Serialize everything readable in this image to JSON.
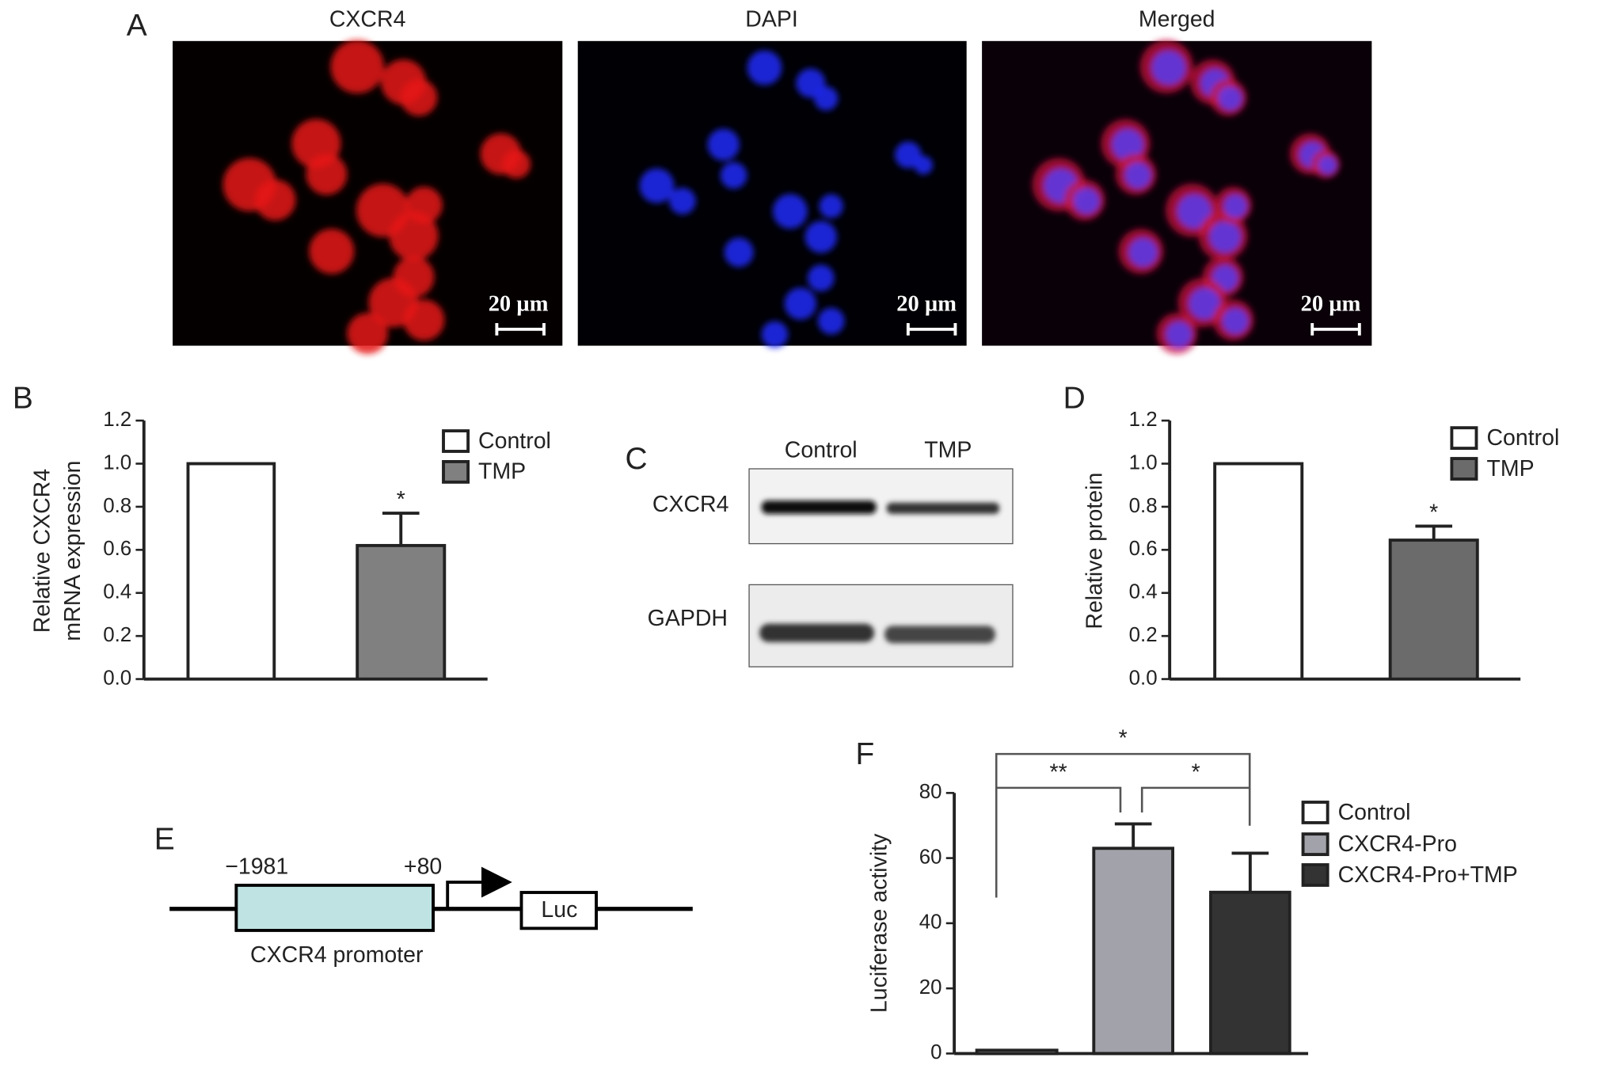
{
  "figure": {
    "panel_labels": [
      "A",
      "B",
      "C",
      "D",
      "E",
      "F"
    ],
    "microscopy": {
      "titles": [
        "CXCR4",
        "DAPI",
        "Merged"
      ],
      "scale_bar": "20 µm"
    },
    "western_blot": {
      "lanes": [
        "Control",
        "TMP"
      ],
      "rows": [
        "CXCR4",
        "GAPDH"
      ]
    },
    "promoter_diagram": {
      "start": "−1981",
      "end": "+80",
      "region": "CXCR4 promoter",
      "reporter": "Luc"
    }
  },
  "chart_data": [
    {
      "type": "bar",
      "ylabel": [
        "Relative CXCR4",
        "mRNA expression"
      ],
      "ylim": [
        0,
        1.2
      ],
      "yticks": [
        {
          "value": 0,
          "label": "0.0"
        },
        0.2,
        0.4,
        0.6,
        0.8,
        {
          "value": 1,
          "label": "1.0"
        },
        1.2
      ],
      "series": [
        {
          "name": "Control",
          "color": "#ffffff",
          "values": [
            1.0
          ]
        },
        {
          "name": "TMP",
          "color": "#808080",
          "values": [
            0.62
          ],
          "errors": [
            0.15
          ],
          "annotation": "*"
        }
      ]
    },
    {
      "type": "bar",
      "ylabel": "Relative protein",
      "ylim": [
        0,
        1.2
      ],
      "yticks": [
        {
          "value": 0,
          "label": "0.0"
        },
        0.2,
        0.4,
        0.6,
        0.8,
        {
          "value": 1,
          "label": "1.0"
        },
        1.2
      ],
      "series": [
        {
          "name": "Control",
          "color": "#ffffff",
          "values": [
            1.0
          ]
        },
        {
          "name": "TMP",
          "color": "#6b6b6b",
          "values": [
            0.645
          ],
          "errors": [
            0.065
          ],
          "annotation": "*"
        }
      ]
    },
    {
      "type": "bar",
      "ylabel": "Luciferase activity",
      "ylim": [
        0,
        80
      ],
      "yticks": [
        0,
        20,
        40,
        60,
        80
      ],
      "series": [
        {
          "name": "Control",
          "color": "#ffffff",
          "values": [
            1
          ]
        },
        {
          "name": "CXCR4-Pro",
          "color": "#a2a2aa",
          "values": [
            63
          ],
          "errors": [
            7.5
          ]
        },
        {
          "name": "CXCR4-Pro+TMP",
          "color": "#333333",
          "values": [
            49.5
          ],
          "errors": [
            12
          ]
        }
      ],
      "comparisons": [
        "**",
        "*",
        "*"
      ]
    }
  ]
}
